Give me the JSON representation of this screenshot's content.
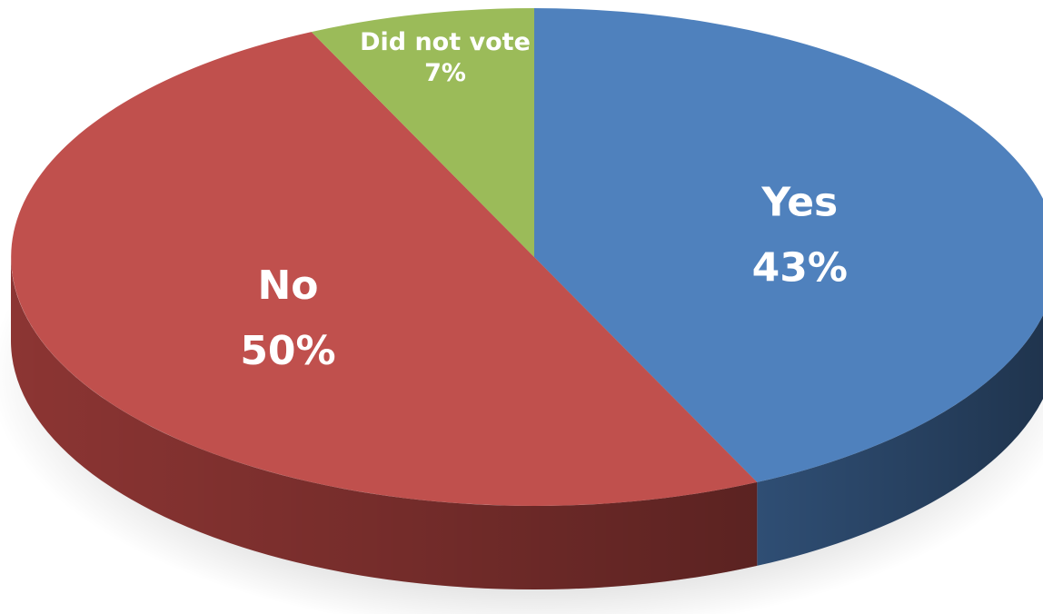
{
  "chart_data": {
    "type": "pie",
    "style": "3d-tilted",
    "title": "",
    "legend": "none",
    "slices": [
      {
        "name": "Yes",
        "value": 43,
        "label": "43%",
        "color": "#4f81bd",
        "side_color": "#2f4e74"
      },
      {
        "name": "No",
        "value": 50,
        "label": "50%",
        "color": "#c0504d",
        "side_color": "#8c3533"
      },
      {
        "name": "Did not vote",
        "value": 7,
        "label": "7%",
        "color": "#9bbb59",
        "side_color": "#6f8a3d"
      }
    ]
  }
}
